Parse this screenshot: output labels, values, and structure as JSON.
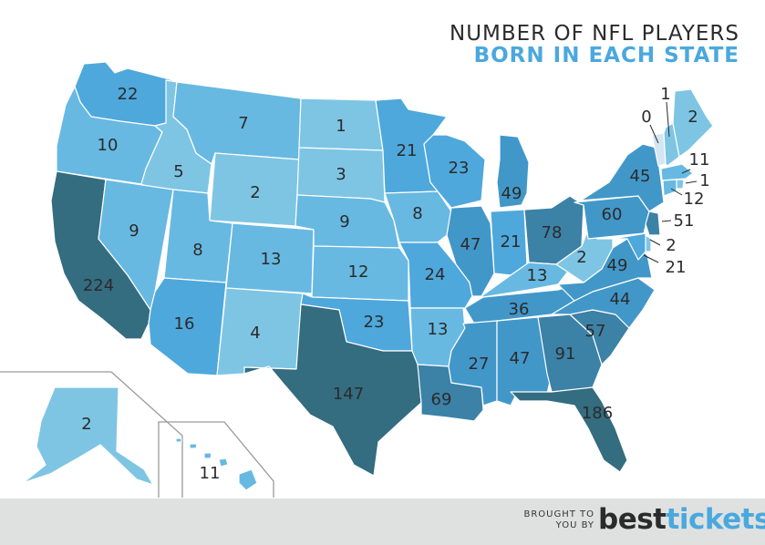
{
  "title_line1": "NUMBER OF NFL PLAYERS",
  "title_line2": "BORN IN EACH STATE",
  "footer": {
    "brought_line1": "BROUGHT TO",
    "brought_line2": "YOU BY",
    "brand_part1": "best",
    "brand_part2": "tickets"
  },
  "colors": {
    "c0": "#d3e6f4",
    "c1": "#7ec5e4",
    "c2": "#67b9e2",
    "c3": "#4ea8dc",
    "c4": "#4297c9",
    "c5": "#3c81a6",
    "c6": "#346c80",
    "border": "#ffffff",
    "inset_frame": "#9a9a9a",
    "title_dark": "#2b2b2b",
    "title_blue": "#4aa8de"
  },
  "states": [
    {
      "code": "WA",
      "value": 22,
      "shade": "c3"
    },
    {
      "code": "OR",
      "value": 10,
      "shade": "c2"
    },
    {
      "code": "CA",
      "value": 224,
      "shade": "c6"
    },
    {
      "code": "ID",
      "value": 5,
      "shade": "c1"
    },
    {
      "code": "NV",
      "value": 9,
      "shade": "c2"
    },
    {
      "code": "MT",
      "value": 7,
      "shade": "c2"
    },
    {
      "code": "WY",
      "value": 2,
      "shade": "c1"
    },
    {
      "code": "UT",
      "value": 8,
      "shade": "c2"
    },
    {
      "code": "CO",
      "value": 13,
      "shade": "c2"
    },
    {
      "code": "AZ",
      "value": 16,
      "shade": "c3"
    },
    {
      "code": "NM",
      "value": 4,
      "shade": "c1"
    },
    {
      "code": "ND",
      "value": 1,
      "shade": "c1"
    },
    {
      "code": "SD",
      "value": 3,
      "shade": "c1"
    },
    {
      "code": "NE",
      "value": 9,
      "shade": "c2"
    },
    {
      "code": "KS",
      "value": 12,
      "shade": "c2"
    },
    {
      "code": "OK",
      "value": 23,
      "shade": "c3"
    },
    {
      "code": "TX",
      "value": 147,
      "shade": "c6"
    },
    {
      "code": "MN",
      "value": 21,
      "shade": "c3"
    },
    {
      "code": "IA",
      "value": 8,
      "shade": "c2"
    },
    {
      "code": "MO",
      "value": 24,
      "shade": "c3"
    },
    {
      "code": "AR",
      "value": 13,
      "shade": "c2"
    },
    {
      "code": "LA",
      "value": 69,
      "shade": "c5"
    },
    {
      "code": "WI",
      "value": 23,
      "shade": "c3"
    },
    {
      "code": "IL",
      "value": 47,
      "shade": "c4"
    },
    {
      "code": "MI",
      "value": 49,
      "shade": "c4"
    },
    {
      "code": "IN",
      "value": 21,
      "shade": "c3"
    },
    {
      "code": "OH",
      "value": 78,
      "shade": "c5"
    },
    {
      "code": "KY",
      "value": 13,
      "shade": "c2"
    },
    {
      "code": "TN",
      "value": 36,
      "shade": "c4"
    },
    {
      "code": "MS",
      "value": 27,
      "shade": "c4"
    },
    {
      "code": "AL",
      "value": 47,
      "shade": "c4"
    },
    {
      "code": "GA",
      "value": 91,
      "shade": "c5"
    },
    {
      "code": "FL",
      "value": 186,
      "shade": "c6"
    },
    {
      "code": "SC",
      "value": 57,
      "shade": "c5"
    },
    {
      "code": "NC",
      "value": 44,
      "shade": "c4"
    },
    {
      "code": "VA",
      "value": 49,
      "shade": "c4"
    },
    {
      "code": "WV",
      "value": 2,
      "shade": "c1"
    },
    {
      "code": "PA",
      "value": 60,
      "shade": "c4"
    },
    {
      "code": "NY",
      "value": 45,
      "shade": "c4"
    },
    {
      "code": "VT",
      "value": 0,
      "shade": "c0"
    },
    {
      "code": "NH",
      "value": 1,
      "shade": "c1"
    },
    {
      "code": "ME",
      "value": 2,
      "shade": "c1"
    },
    {
      "code": "MA",
      "value": 11,
      "shade": "c2"
    },
    {
      "code": "RI",
      "value": 1,
      "shade": "c1"
    },
    {
      "code": "CT",
      "value": 12,
      "shade": "c2"
    },
    {
      "code": "NJ",
      "value": 51,
      "shade": "c5"
    },
    {
      "code": "DE",
      "value": 2,
      "shade": "c1"
    },
    {
      "code": "MD",
      "value": 21,
      "shade": "c3"
    },
    {
      "code": "AK",
      "value": 2,
      "shade": "c1"
    },
    {
      "code": "HI",
      "value": 11,
      "shade": "c2"
    }
  ]
}
